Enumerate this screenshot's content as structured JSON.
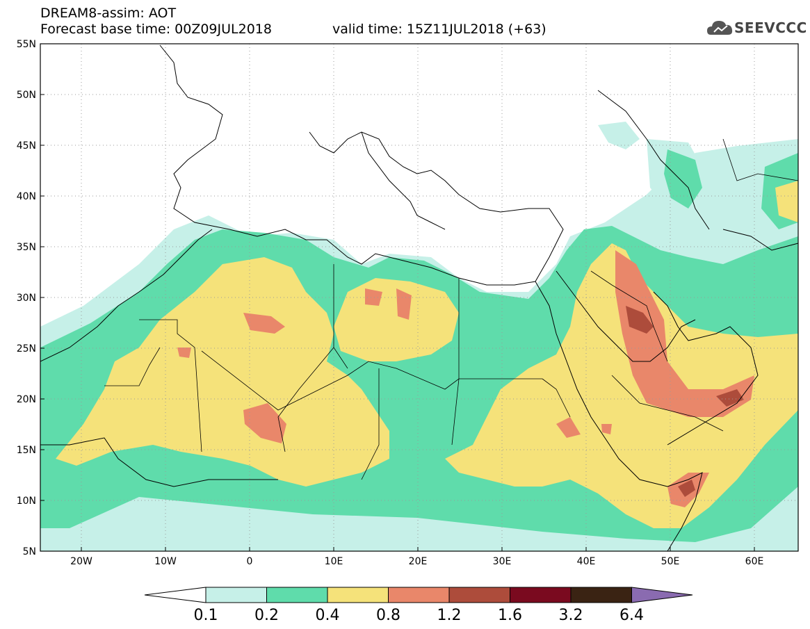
{
  "header": {
    "title_line1": "DREAM8-assim: AOT",
    "title_line2": "Forecast base time: 00Z09JUL2018",
    "valid_time": "valid time: 15Z11JUL2018 (+63)",
    "logo_text": "SEEVCCC"
  },
  "map": {
    "lat_labels": [
      "55N",
      "50N",
      "45N",
      "40N",
      "35N",
      "30N",
      "25N",
      "20N",
      "15N",
      "10N",
      "5N"
    ],
    "lon_labels": [
      "20W",
      "10W",
      "0",
      "10E",
      "20E",
      "30E",
      "40E",
      "50E",
      "60E"
    ],
    "lat_range": [
      5,
      55
    ],
    "lon_range": [
      -25,
      65
    ],
    "projection": "cylindrical"
  },
  "colorbar": {
    "labels": [
      "0.1",
      "0.2",
      "0.4",
      "0.8",
      "1.2",
      "1.6",
      "3.2",
      "6.4"
    ],
    "colors": [
      "#ffffff",
      "#c6f0e8",
      "#5fdcab",
      "#f5e27a",
      "#e9876a",
      "#ad4c3b",
      "#7a0a1f",
      "#3a2313",
      "#8a6bb0"
    ]
  }
}
